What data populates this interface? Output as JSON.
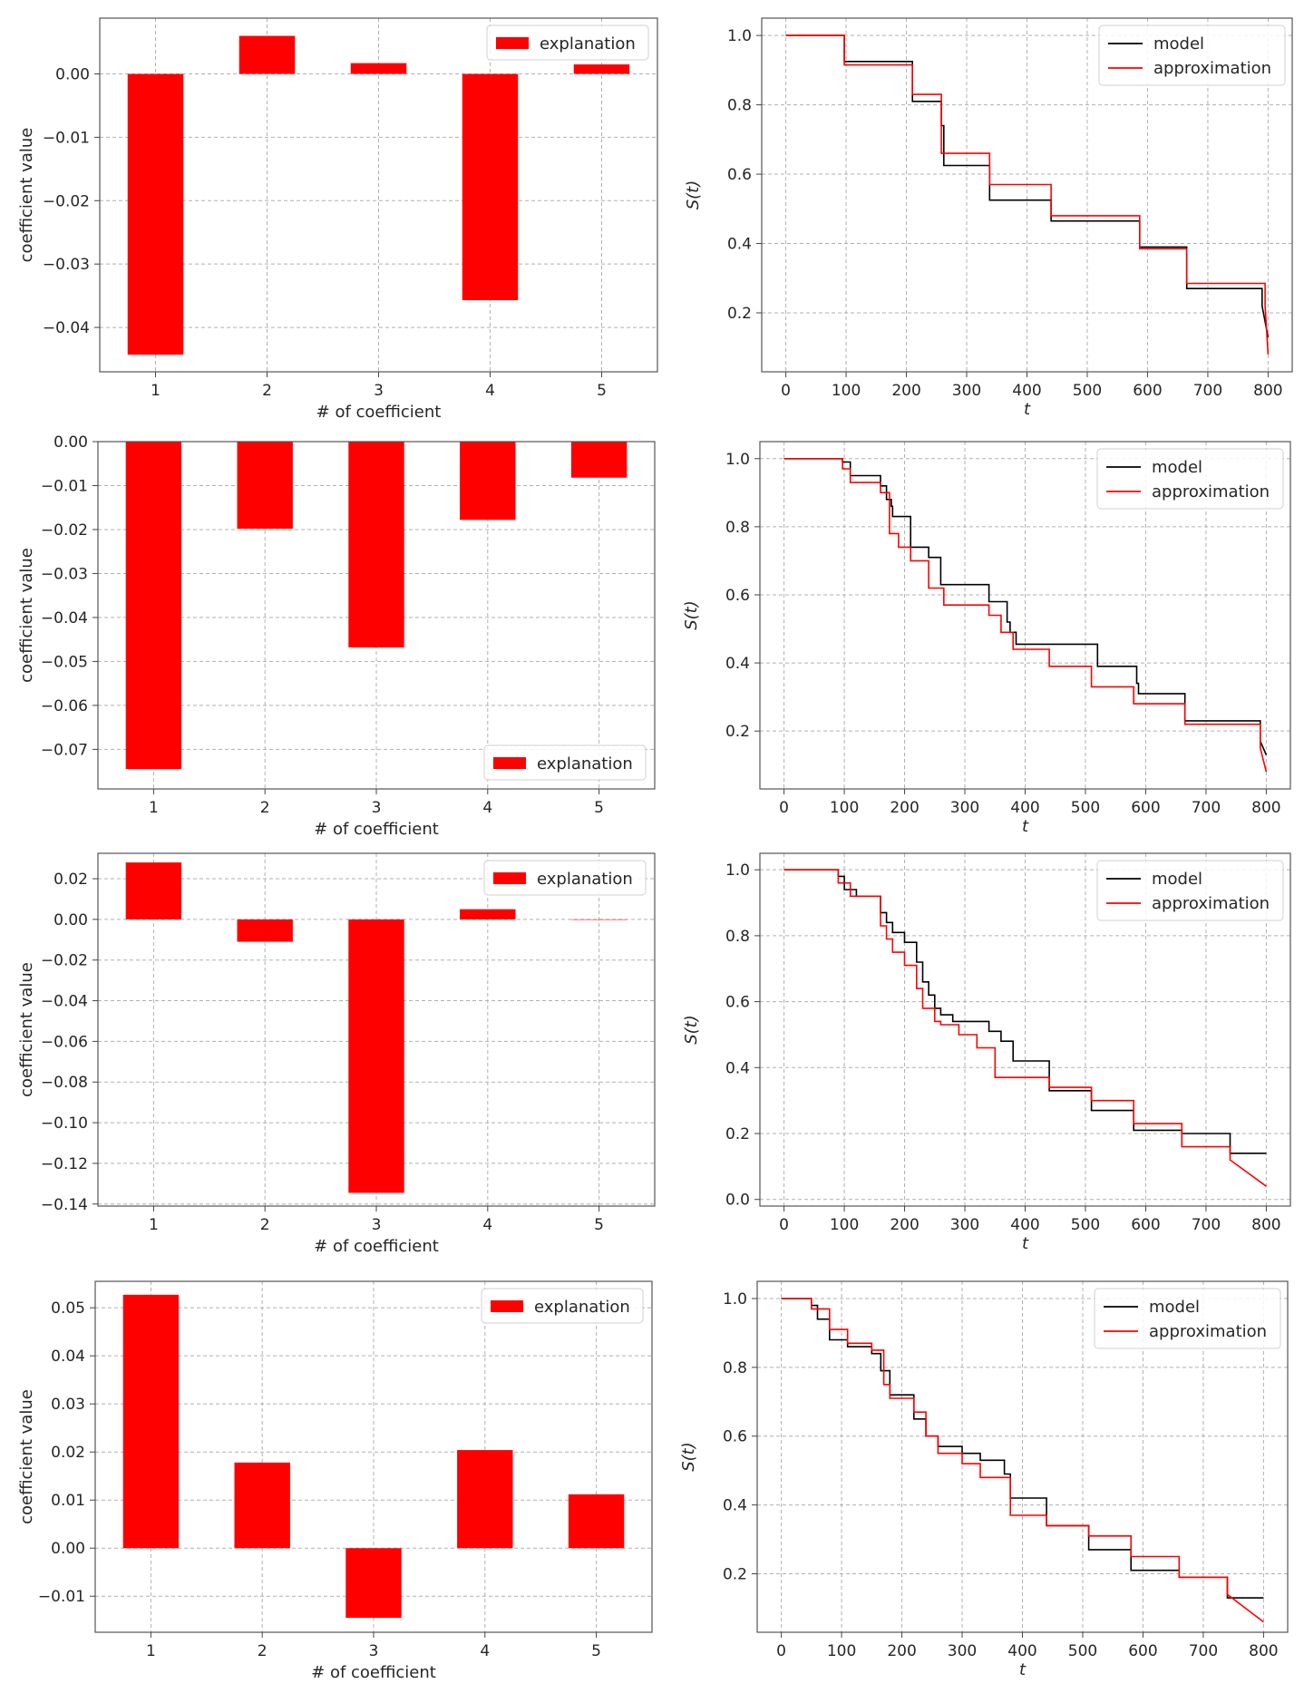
{
  "colors": {
    "bar": "#ff0000",
    "model": "#000000",
    "approximation": "#ff0000",
    "grid": "#b0b0b0"
  },
  "chart_data": [
    {
      "type": "bar",
      "categories": [
        "1",
        "2",
        "3",
        "4",
        "5"
      ],
      "values": [
        -0.0443,
        0.006,
        0.0017,
        -0.0357,
        0.0015
      ],
      "ylim": [
        -0.047,
        0.0088
      ],
      "yticks": [
        0.0,
        -0.01,
        -0.02,
        -0.03,
        -0.04
      ],
      "ytick_labels": [
        "0.00",
        "−0.01",
        "−0.02",
        "−0.03",
        "−0.04"
      ],
      "xlabel": "# of coefficient",
      "ylabel": "coefficient value",
      "legend": "explanation",
      "legend_loc": "top-right",
      "grid": true
    },
    {
      "type": "line",
      "xlim": [
        -40,
        840
      ],
      "ylim": [
        0.03,
        1.05
      ],
      "xticks": [
        0,
        100,
        200,
        300,
        400,
        500,
        600,
        700,
        800
      ],
      "xtick_labels": [
        "0",
        "100",
        "200",
        "300",
        "400",
        "500",
        "600",
        "700",
        "800"
      ],
      "yticks": [
        0.2,
        0.4,
        0.6,
        0.8,
        1.0
      ],
      "ytick_labels": [
        "0.2",
        "0.4",
        "0.6",
        "0.8",
        "1.0"
      ],
      "xlabel": "t",
      "ylabel": "S(t)",
      "legend_loc": "top-right",
      "grid": true,
      "series": [
        {
          "name": "model",
          "color": "#000000",
          "x": [
            0,
            97,
            97,
            210,
            210,
            258,
            258,
            262,
            262,
            338,
            338,
            440,
            440,
            587,
            587,
            665,
            665,
            790,
            790,
            800
          ],
          "y": [
            1.0,
            1.0,
            0.925,
            0.925,
            0.81,
            0.81,
            0.74,
            0.74,
            0.625,
            0.625,
            0.525,
            0.525,
            0.465,
            0.465,
            0.39,
            0.39,
            0.27,
            0.27,
            0.22,
            0.13
          ]
        },
        {
          "name": "approximation",
          "color": "#ff0000",
          "x": [
            0,
            97,
            97,
            210,
            210,
            258,
            258,
            338,
            338,
            440,
            440,
            587,
            587,
            665,
            665,
            795,
            795,
            800
          ],
          "y": [
            1.0,
            1.0,
            0.915,
            0.915,
            0.83,
            0.83,
            0.66,
            0.66,
            0.57,
            0.57,
            0.48,
            0.48,
            0.385,
            0.385,
            0.285,
            0.285,
            0.22,
            0.08
          ]
        }
      ]
    },
    {
      "type": "bar",
      "categories": [
        "1",
        "2",
        "3",
        "4",
        "5"
      ],
      "values": [
        -0.0745,
        -0.0198,
        -0.0468,
        -0.0178,
        -0.0082
      ],
      "ylim": [
        -0.079,
        0.0
      ],
      "yticks": [
        0.0,
        -0.01,
        -0.02,
        -0.03,
        -0.04,
        -0.05,
        -0.06,
        -0.07
      ],
      "ytick_labels": [
        "0.00",
        "−0.01",
        "−0.02",
        "−0.03",
        "−0.04",
        "−0.05",
        "−0.06",
        "−0.07"
      ],
      "xlabel": "# of coefficient",
      "ylabel": "coefficient value",
      "legend": "explanation",
      "legend_loc": "bottom-right",
      "grid": true
    },
    {
      "type": "line",
      "xlim": [
        -40,
        840
      ],
      "ylim": [
        0.03,
        1.05
      ],
      "xticks": [
        0,
        100,
        200,
        300,
        400,
        500,
        600,
        700,
        800
      ],
      "xtick_labels": [
        "0",
        "100",
        "200",
        "300",
        "400",
        "500",
        "600",
        "700",
        "800"
      ],
      "yticks": [
        0.2,
        0.4,
        0.6,
        0.8,
        1.0
      ],
      "ytick_labels": [
        "0.2",
        "0.4",
        "0.6",
        "0.8",
        "1.0"
      ],
      "xlabel": "t",
      "ylabel": "S(t)",
      "legend_loc": "top-right",
      "grid": true,
      "series": [
        {
          "name": "model",
          "color": "#000000",
          "x": [
            0,
            97,
            97,
            110,
            110,
            160,
            160,
            170,
            170,
            178,
            178,
            180,
            180,
            210,
            210,
            240,
            240,
            260,
            260,
            340,
            340,
            370,
            370,
            375,
            375,
            385,
            385,
            520,
            520,
            585,
            585,
            588,
            588,
            665,
            665,
            790,
            790,
            800
          ],
          "y": [
            1.0,
            1.0,
            0.99,
            0.99,
            0.95,
            0.95,
            0.92,
            0.92,
            0.88,
            0.88,
            0.86,
            0.86,
            0.83,
            0.83,
            0.74,
            0.74,
            0.71,
            0.71,
            0.63,
            0.63,
            0.58,
            0.58,
            0.52,
            0.52,
            0.49,
            0.49,
            0.455,
            0.455,
            0.39,
            0.39,
            0.34,
            0.34,
            0.31,
            0.31,
            0.23,
            0.23,
            0.17,
            0.13
          ]
        },
        {
          "name": "approximation",
          "color": "#ff0000",
          "x": [
            0,
            97,
            97,
            110,
            110,
            160,
            160,
            175,
            175,
            190,
            190,
            210,
            210,
            240,
            240,
            265,
            265,
            340,
            340,
            360,
            360,
            380,
            380,
            440,
            440,
            510,
            510,
            580,
            580,
            590,
            590,
            665,
            665,
            790,
            790,
            800
          ],
          "y": [
            1.0,
            1.0,
            0.97,
            0.97,
            0.93,
            0.93,
            0.9,
            0.9,
            0.78,
            0.78,
            0.74,
            0.74,
            0.7,
            0.7,
            0.62,
            0.62,
            0.57,
            0.57,
            0.54,
            0.54,
            0.49,
            0.49,
            0.44,
            0.44,
            0.39,
            0.39,
            0.33,
            0.33,
            0.28,
            0.28,
            0.28,
            0.28,
            0.22,
            0.22,
            0.15,
            0.08
          ]
        }
      ]
    },
    {
      "type": "bar",
      "categories": [
        "1",
        "2",
        "3",
        "4",
        "5"
      ],
      "values": [
        0.028,
        -0.011,
        -0.1345,
        0.005,
        0.0
      ],
      "ylim": [
        -0.141,
        0.0325
      ],
      "yticks": [
        0.02,
        0.0,
        -0.02,
        -0.04,
        -0.06,
        -0.08,
        -0.1,
        -0.12,
        -0.14
      ],
      "ytick_labels": [
        "0.02",
        "0.00",
        "−0.02",
        "−0.04",
        "−0.06",
        "−0.08",
        "−0.10",
        "−0.12",
        "−0.14"
      ],
      "xlabel": "# of coefficient",
      "ylabel": "coefficient value",
      "legend": "explanation",
      "legend_loc": "top-right",
      "grid": true
    },
    {
      "type": "line",
      "xlim": [
        -40,
        840
      ],
      "ylim": [
        -0.02,
        1.05
      ],
      "xticks": [
        0,
        100,
        200,
        300,
        400,
        500,
        600,
        700,
        800
      ],
      "xtick_labels": [
        "0",
        "100",
        "200",
        "300",
        "400",
        "500",
        "600",
        "700",
        "800"
      ],
      "yticks": [
        0.0,
        0.2,
        0.4,
        0.6,
        0.8,
        1.0
      ],
      "ytick_labels": [
        "0.0",
        "0.2",
        "0.4",
        "0.6",
        "0.8",
        "1.0"
      ],
      "xlabel": "t",
      "ylabel": "S(t)",
      "legend_loc": "top-right",
      "grid": true,
      "series": [
        {
          "name": "model",
          "color": "#000000",
          "x": [
            0,
            90,
            90,
            100,
            100,
            120,
            120,
            160,
            160,
            170,
            170,
            180,
            180,
            200,
            200,
            220,
            220,
            230,
            230,
            240,
            240,
            250,
            250,
            260,
            260,
            280,
            280,
            340,
            340,
            360,
            360,
            380,
            380,
            440,
            440,
            510,
            510,
            580,
            580,
            660,
            660,
            740,
            740,
            800
          ],
          "y": [
            1.0,
            1.0,
            0.98,
            0.98,
            0.94,
            0.94,
            0.92,
            0.92,
            0.87,
            0.87,
            0.84,
            0.84,
            0.81,
            0.81,
            0.78,
            0.78,
            0.72,
            0.72,
            0.66,
            0.66,
            0.62,
            0.62,
            0.58,
            0.58,
            0.56,
            0.56,
            0.54,
            0.54,
            0.51,
            0.51,
            0.48,
            0.48,
            0.42,
            0.42,
            0.33,
            0.33,
            0.27,
            0.27,
            0.21,
            0.21,
            0.2,
            0.2,
            0.14,
            0.14
          ]
        },
        {
          "name": "approximation",
          "color": "#ff0000",
          "x": [
            0,
            90,
            90,
            110,
            110,
            160,
            160,
            170,
            170,
            180,
            180,
            200,
            200,
            220,
            220,
            230,
            230,
            250,
            250,
            260,
            260,
            290,
            290,
            320,
            320,
            350,
            350,
            380,
            380,
            440,
            440,
            510,
            510,
            580,
            580,
            660,
            660,
            740,
            740,
            800
          ],
          "y": [
            1.0,
            1.0,
            0.96,
            0.96,
            0.92,
            0.92,
            0.83,
            0.83,
            0.79,
            0.79,
            0.75,
            0.75,
            0.71,
            0.71,
            0.64,
            0.64,
            0.58,
            0.58,
            0.54,
            0.54,
            0.53,
            0.53,
            0.5,
            0.5,
            0.46,
            0.46,
            0.37,
            0.37,
            0.37,
            0.37,
            0.34,
            0.34,
            0.3,
            0.3,
            0.23,
            0.23,
            0.16,
            0.16,
            0.12,
            0.04
          ]
        }
      ]
    },
    {
      "type": "bar",
      "categories": [
        "1",
        "2",
        "3",
        "4",
        "5"
      ],
      "values": [
        0.0527,
        0.0178,
        -0.0145,
        0.0204,
        0.0112
      ],
      "ylim": [
        -0.0175,
        0.0555
      ],
      "yticks": [
        0.05,
        0.04,
        0.03,
        0.02,
        0.01,
        0.0,
        -0.01
      ],
      "ytick_labels": [
        "0.05",
        "0.04",
        "0.03",
        "0.02",
        "0.01",
        "0.00",
        "−0.01"
      ],
      "xlabel": "# of coefficient",
      "ylabel": "coefficient value",
      "legend": "explanation",
      "legend_loc": "top-right",
      "grid": true
    },
    {
      "type": "line",
      "xlim": [
        -40,
        840
      ],
      "ylim": [
        0.03,
        1.05
      ],
      "xticks": [
        0,
        100,
        200,
        300,
        400,
        500,
        600,
        700,
        800
      ],
      "xtick_labels": [
        "0",
        "100",
        "200",
        "300",
        "400",
        "500",
        "600",
        "700",
        "800"
      ],
      "yticks": [
        0.2,
        0.4,
        0.6,
        0.8,
        1.0
      ],
      "ytick_labels": [
        "0.2",
        "0.4",
        "0.6",
        "0.8",
        "1.0"
      ],
      "xlabel": "t",
      "ylabel": "S(t)",
      "legend_loc": "top-right",
      "grid": true,
      "series": [
        {
          "name": "model",
          "color": "#000000",
          "x": [
            0,
            50,
            50,
            60,
            60,
            80,
            80,
            110,
            110,
            150,
            150,
            165,
            165,
            180,
            180,
            220,
            220,
            240,
            240,
            260,
            260,
            300,
            300,
            330,
            330,
            370,
            370,
            380,
            380,
            440,
            440,
            510,
            510,
            580,
            580,
            660,
            660,
            740,
            740,
            800
          ],
          "y": [
            1.0,
            1.0,
            0.98,
            0.98,
            0.94,
            0.94,
            0.88,
            0.88,
            0.86,
            0.86,
            0.84,
            0.84,
            0.79,
            0.79,
            0.72,
            0.72,
            0.65,
            0.65,
            0.6,
            0.6,
            0.57,
            0.57,
            0.55,
            0.55,
            0.53,
            0.53,
            0.49,
            0.49,
            0.42,
            0.42,
            0.34,
            0.34,
            0.27,
            0.27,
            0.21,
            0.21,
            0.19,
            0.19,
            0.13,
            0.13
          ]
        },
        {
          "name": "approximation",
          "color": "#ff0000",
          "x": [
            0,
            50,
            50,
            80,
            80,
            110,
            110,
            150,
            150,
            170,
            170,
            180,
            180,
            220,
            220,
            240,
            240,
            260,
            260,
            300,
            300,
            330,
            330,
            380,
            380,
            440,
            440,
            510,
            510,
            580,
            580,
            660,
            660,
            740,
            740,
            800
          ],
          "y": [
            1.0,
            1.0,
            0.97,
            0.97,
            0.91,
            0.91,
            0.87,
            0.87,
            0.85,
            0.85,
            0.75,
            0.75,
            0.71,
            0.71,
            0.67,
            0.67,
            0.6,
            0.6,
            0.55,
            0.55,
            0.52,
            0.52,
            0.48,
            0.48,
            0.37,
            0.37,
            0.34,
            0.34,
            0.31,
            0.31,
            0.25,
            0.25,
            0.19,
            0.19,
            0.14,
            0.06
          ]
        }
      ]
    }
  ]
}
